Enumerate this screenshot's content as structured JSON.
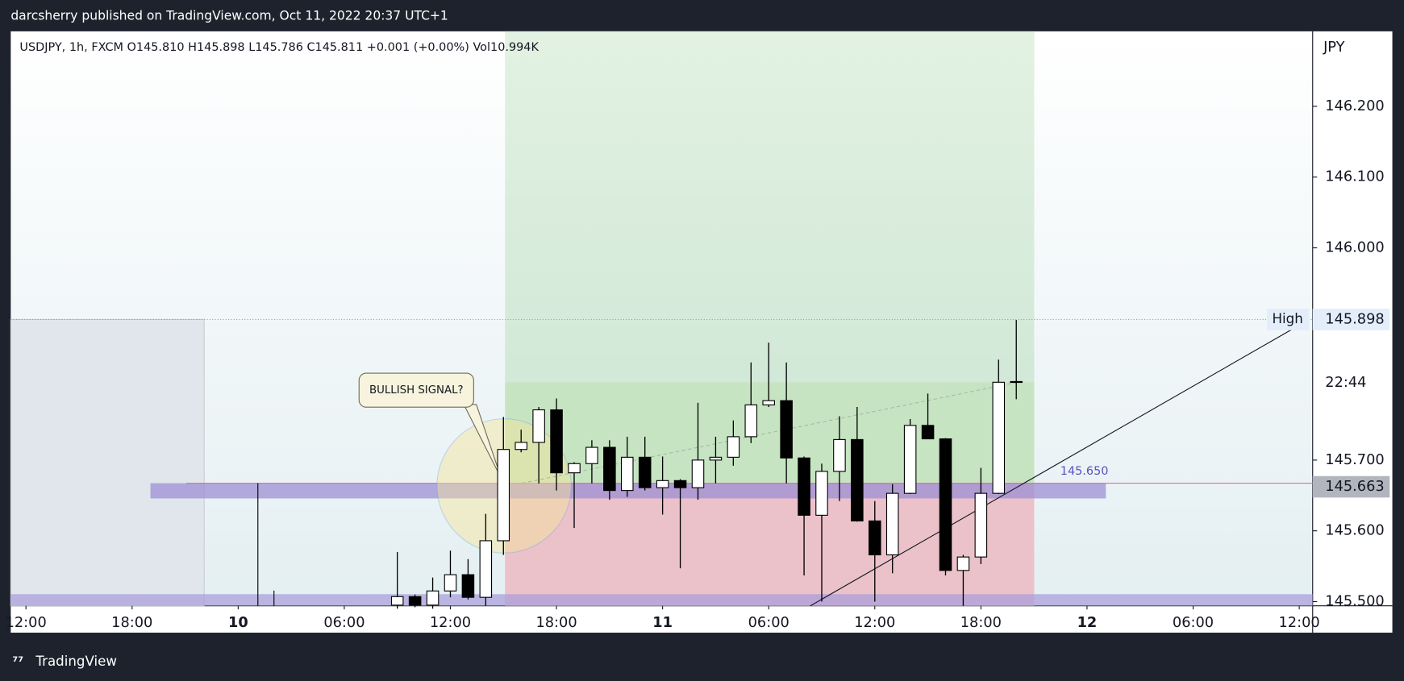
{
  "header": {
    "published": "darcsherry published on TradingView.com, Oct 11, 2022 20:37 UTC+1",
    "brand": "TradingView"
  },
  "chart_data": {
    "type": "candlestick",
    "title": "USDJPY, 1h, FXCM  O145.810  H145.898  L145.786  C145.811  +0.001 (+0.00%)  Vol10.994K",
    "y_axis_unit": "JPY",
    "x": [
      9,
      10,
      11,
      12,
      13,
      14,
      15,
      16,
      17,
      18,
      19,
      20,
      21,
      22,
      23,
      24,
      25,
      26,
      27,
      28,
      29,
      30,
      31,
      32,
      33,
      34,
      35,
      36,
      37,
      38,
      39,
      40,
      41,
      42,
      43,
      44
    ],
    "open": [
      145.495,
      145.507,
      145.495,
      145.515,
      145.538,
      145.506,
      145.586,
      145.715,
      145.725,
      145.771,
      145.682,
      145.695,
      145.718,
      145.657,
      145.704,
      145.661,
      145.671,
      145.661,
      145.7,
      145.704,
      145.733,
      145.778,
      145.784,
      145.703,
      145.622,
      145.684,
      145.729,
      145.614,
      145.566,
      145.653,
      145.749,
      145.73,
      145.544,
      145.563,
      145.653,
      145.81
    ],
    "high": [
      145.57,
      145.51,
      145.534,
      145.572,
      145.56,
      145.624,
      145.761,
      145.743,
      145.775,
      145.787,
      145.697,
      145.728,
      145.728,
      145.733,
      145.733,
      145.705,
      145.673,
      145.781,
      145.733,
      145.756,
      145.838,
      145.866,
      145.838,
      145.705,
      145.695,
      145.762,
      145.775,
      145.642,
      145.666,
      145.758,
      145.794,
      145.731,
      145.566,
      145.689,
      145.842,
      145.898
    ],
    "low": [
      145.49,
      145.492,
      145.49,
      145.506,
      145.503,
      145.494,
      145.566,
      145.711,
      145.667,
      145.657,
      145.604,
      145.667,
      145.644,
      145.648,
      145.657,
      145.623,
      145.547,
      145.644,
      145.667,
      145.692,
      145.724,
      145.775,
      145.667,
      145.537,
      145.5,
      145.642,
      145.613,
      145.5,
      145.54,
      145.652,
      145.73,
      145.537,
      145.494,
      145.553,
      145.652,
      145.786
    ],
    "close": [
      145.507,
      145.495,
      145.515,
      145.538,
      145.506,
      145.586,
      145.715,
      145.725,
      145.771,
      145.682,
      145.695,
      145.718,
      145.657,
      145.704,
      145.661,
      145.671,
      145.661,
      145.7,
      145.704,
      145.733,
      145.778,
      145.784,
      145.703,
      145.622,
      145.684,
      145.729,
      145.614,
      145.566,
      145.653,
      145.749,
      145.73,
      145.544,
      145.563,
      145.653,
      145.81,
      145.811
    ],
    "up_color": "#ffffff",
    "down_color": "#000000",
    "xlim": [
      -12.86,
      60.76
    ],
    "xticks": [
      {
        "value": -12,
        "label": "12:00"
      },
      {
        "value": -6,
        "label": "18:00"
      },
      {
        "value": 0,
        "label": "10"
      },
      {
        "value": 6,
        "label": "06:00"
      },
      {
        "value": 12,
        "label": "12:00"
      },
      {
        "value": 18,
        "label": "18:00"
      },
      {
        "value": 24,
        "label": "11"
      },
      {
        "value": 30,
        "label": "06:00"
      },
      {
        "value": 36,
        "label": "12:00"
      },
      {
        "value": 42,
        "label": "18:00"
      },
      {
        "value": 48,
        "label": "12"
      },
      {
        "value": 54,
        "label": "06:00"
      },
      {
        "value": 60,
        "label": "12:00"
      }
    ],
    "ylim": [
      145.494,
      146.306
    ],
    "yticks": [
      {
        "value": 146.2,
        "label": "146.200"
      },
      {
        "value": 146.1,
        "label": "146.100"
      },
      {
        "value": 146.0,
        "label": "146.000"
      },
      {
        "value": 145.7,
        "label": "145.700"
      },
      {
        "value": 145.6,
        "label": "145.600"
      },
      {
        "value": 145.5,
        "label": "145.500"
      }
    ],
    "annotations": {
      "high_label": "High",
      "high_price": "145.898",
      "countdown": "22:44",
      "level_price": "145.663",
      "level_note": "145.650",
      "callout": "BULLISH SIGNAL?"
    }
  }
}
